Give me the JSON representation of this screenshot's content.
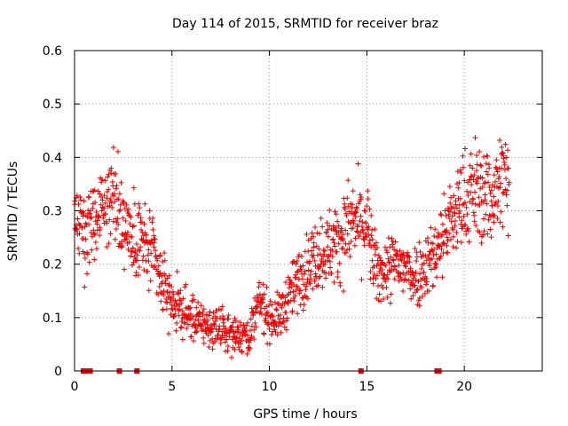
{
  "chart_data": {
    "type": "scatter",
    "title": "Day 114 of 2015, SRMTID for receiver braz",
    "xlabel": "GPS time / hours",
    "ylabel": "SRMTID / TECUs",
    "xlim": [
      0,
      24
    ],
    "ylim": [
      0,
      0.6
    ],
    "x_ticks": [
      0,
      5,
      10,
      15,
      20
    ],
    "y_ticks": [
      0,
      0.1,
      0.2,
      0.3,
      0.4,
      0.5,
      0.6
    ],
    "x_tick_labels": [
      "0",
      "5",
      "10",
      "15",
      "20"
    ],
    "y_tick_labels": [
      "0",
      "0.1",
      "0.2",
      "0.3",
      "0.4",
      "0.5",
      "0.6"
    ],
    "grid": true,
    "marker": "+",
    "color": "#ee0000",
    "series": [
      {
        "name": "SRMTID",
        "trend_x": [
          0,
          0.5,
          1,
          1.5,
          2,
          2.5,
          3,
          3.5,
          4,
          4.5,
          5,
          5.5,
          6,
          6.5,
          7,
          7.5,
          8,
          8.5,
          9,
          9.5,
          10,
          10.5,
          11,
          11.5,
          12,
          12.5,
          13,
          13.5,
          14,
          14.5,
          15,
          15.5,
          16,
          16.5,
          17,
          17.5,
          18,
          18.5,
          19,
          19.5,
          20,
          20.5,
          21,
          21.5,
          22,
          22.3
        ],
        "trend_y": [
          0.3,
          0.27,
          0.29,
          0.3,
          0.33,
          0.29,
          0.25,
          0.24,
          0.22,
          0.16,
          0.13,
          0.11,
          0.1,
          0.09,
          0.08,
          0.08,
          0.07,
          0.07,
          0.07,
          0.13,
          0.1,
          0.1,
          0.14,
          0.17,
          0.2,
          0.22,
          0.23,
          0.24,
          0.27,
          0.28,
          0.27,
          0.18,
          0.19,
          0.2,
          0.19,
          0.18,
          0.2,
          0.22,
          0.26,
          0.29,
          0.32,
          0.34,
          0.33,
          0.33,
          0.36,
          0.35
        ],
        "n_points": 1400,
        "zero_points_x": [
          0.45,
          0.55,
          0.7,
          0.8,
          2.3,
          3.2,
          14.7,
          18.6,
          18.7
        ]
      }
    ]
  }
}
